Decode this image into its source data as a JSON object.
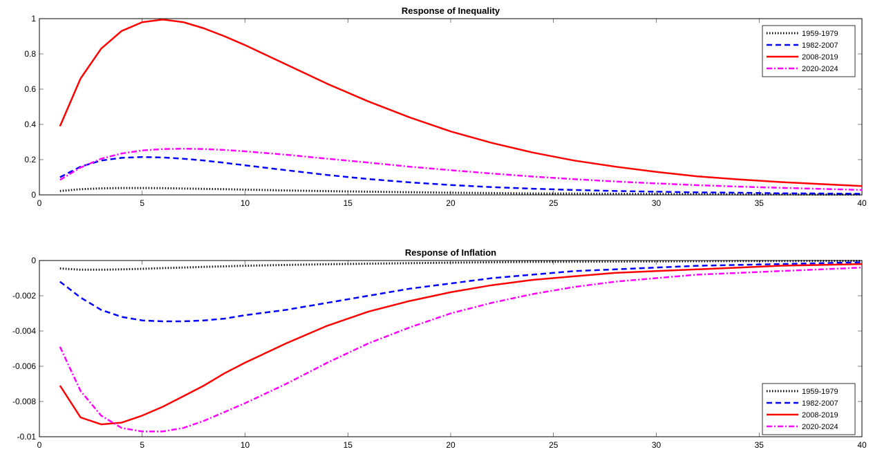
{
  "chart_data": [
    {
      "type": "line",
      "title": "Response of Inequality",
      "xlabel": "",
      "ylabel": "",
      "xlim": [
        0,
        40
      ],
      "ylim": [
        0,
        1
      ],
      "xticks": [
        0,
        5,
        10,
        15,
        20,
        25,
        30,
        35,
        40
      ],
      "xtick_labels": [
        "0",
        "5",
        "10",
        "15",
        "20",
        "25",
        "30",
        "35",
        "40"
      ],
      "yticks": [
        0,
        0.2,
        0.4,
        0.6,
        0.8,
        1
      ],
      "ytick_labels": [
        "0",
        "0.2",
        "0.4",
        "0.6",
        "0.8",
        "1"
      ],
      "legend_position": "top-right",
      "x": [
        1,
        2,
        3,
        4,
        5,
        6,
        7,
        8,
        9,
        10,
        12,
        14,
        16,
        18,
        20,
        22,
        24,
        26,
        28,
        30,
        32,
        34,
        36,
        38,
        40
      ],
      "series": [
        {
          "name": "1959-1979",
          "color": "#000000",
          "style": "dotted",
          "values": [
            0.022,
            0.032,
            0.037,
            0.039,
            0.039,
            0.038,
            0.036,
            0.034,
            0.032,
            0.03,
            0.025,
            0.021,
            0.018,
            0.015,
            0.012,
            0.01,
            0.008,
            0.007,
            0.006,
            0.005,
            0.004,
            0.003,
            0.003,
            0.002,
            0.002
          ]
        },
        {
          "name": "1982-2007",
          "color": "#0000ff",
          "style": "dashed",
          "values": [
            0.1,
            0.16,
            0.195,
            0.21,
            0.215,
            0.212,
            0.205,
            0.195,
            0.182,
            0.168,
            0.14,
            0.113,
            0.09,
            0.071,
            0.056,
            0.044,
            0.035,
            0.028,
            0.022,
            0.018,
            0.014,
            0.012,
            0.009,
            0.008,
            0.006
          ]
        },
        {
          "name": "2008-2019",
          "color": "#ff0000",
          "style": "solid",
          "values": [
            0.39,
            0.66,
            0.83,
            0.93,
            0.98,
            0.995,
            0.98,
            0.945,
            0.9,
            0.85,
            0.74,
            0.63,
            0.53,
            0.44,
            0.36,
            0.295,
            0.24,
            0.195,
            0.16,
            0.13,
            0.105,
            0.088,
            0.073,
            0.061,
            0.05
          ]
        },
        {
          "name": "2020-2024",
          "color": "#ff00ff",
          "style": "dashdot",
          "values": [
            0.085,
            0.155,
            0.205,
            0.235,
            0.252,
            0.26,
            0.262,
            0.26,
            0.255,
            0.247,
            0.228,
            0.205,
            0.183,
            0.16,
            0.14,
            0.121,
            0.104,
            0.089,
            0.076,
            0.065,
            0.055,
            0.047,
            0.04,
            0.034,
            0.028
          ]
        }
      ]
    },
    {
      "type": "line",
      "title": "Response of Inflation",
      "xlabel": "",
      "ylabel": "",
      "xlim": [
        0,
        40
      ],
      "ylim": [
        -0.01,
        0
      ],
      "xticks": [
        0,
        5,
        10,
        15,
        20,
        25,
        30,
        35,
        40
      ],
      "xtick_labels": [
        "0",
        "5",
        "10",
        "15",
        "20",
        "25",
        "30",
        "35",
        "40"
      ],
      "yticks": [
        0,
        -0.002,
        -0.004,
        -0.006,
        -0.008,
        -0.01
      ],
      "ytick_labels": [
        "0",
        "-0.002",
        "-0.004",
        "-0.006",
        "-0.008",
        "-0.01"
      ],
      "legend_position": "bottom-right",
      "x": [
        1,
        2,
        3,
        4,
        5,
        6,
        7,
        8,
        9,
        10,
        12,
        14,
        16,
        18,
        20,
        22,
        24,
        26,
        28,
        30,
        32,
        34,
        36,
        38,
        40
      ],
      "series": [
        {
          "name": "1959-1979",
          "color": "#000000",
          "style": "dotted",
          "values": [
            -0.00045,
            -0.00052,
            -0.00052,
            -0.0005,
            -0.00047,
            -0.00043,
            -0.0004,
            -0.00036,
            -0.00033,
            -0.0003,
            -0.00025,
            -0.00021,
            -0.00018,
            -0.00015,
            -0.00012,
            -0.0001,
            -8e-05,
            -7e-05,
            -6e-05,
            -5e-05,
            -4e-05,
            -3e-05,
            -3e-05,
            -2e-05,
            -2e-05
          ]
        },
        {
          "name": "1982-2007",
          "color": "#0000ff",
          "style": "dashed",
          "values": [
            -0.0012,
            -0.0021,
            -0.0028,
            -0.0032,
            -0.0034,
            -0.00345,
            -0.00345,
            -0.0034,
            -0.0033,
            -0.0031,
            -0.0028,
            -0.0024,
            -0.002,
            -0.0016,
            -0.0013,
            -0.001,
            -0.0008,
            -0.0006,
            -0.0005,
            -0.0004,
            -0.0003,
            -0.00025,
            -0.0002,
            -0.00015,
            -0.0001
          ]
        },
        {
          "name": "2008-2019",
          "color": "#ff0000",
          "style": "solid",
          "values": [
            -0.0071,
            -0.0089,
            -0.0093,
            -0.0092,
            -0.0088,
            -0.0083,
            -0.0077,
            -0.0071,
            -0.0064,
            -0.0058,
            -0.0047,
            -0.0037,
            -0.0029,
            -0.0023,
            -0.0018,
            -0.0014,
            -0.0011,
            -0.0009,
            -0.0007,
            -0.0006,
            -0.0005,
            -0.0004,
            -0.0003,
            -0.00025,
            -0.0002
          ]
        },
        {
          "name": "2020-2024",
          "color": "#ff00ff",
          "style": "dashdot",
          "values": [
            -0.0049,
            -0.0074,
            -0.0088,
            -0.0095,
            -0.0097,
            -0.0097,
            -0.0095,
            -0.0091,
            -0.0086,
            -0.0081,
            -0.007,
            -0.0058,
            -0.0047,
            -0.0038,
            -0.003,
            -0.0024,
            -0.0019,
            -0.0015,
            -0.0012,
            -0.001,
            -0.0008,
            -0.0007,
            -0.0006,
            -0.0005,
            -0.0004
          ]
        }
      ]
    }
  ]
}
